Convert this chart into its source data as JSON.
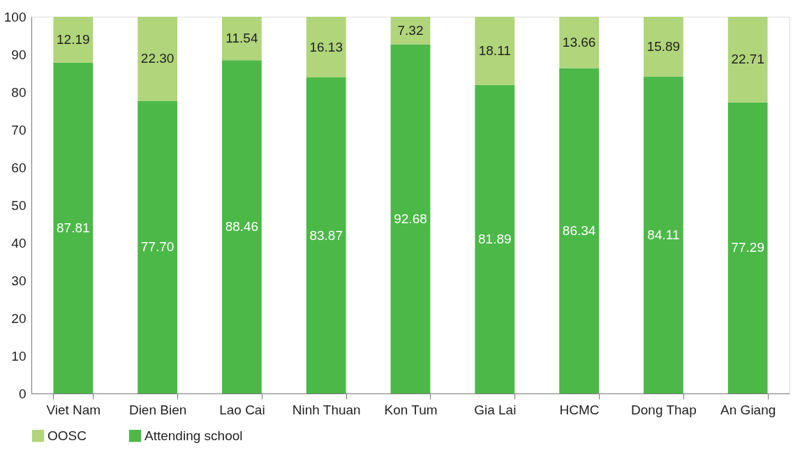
{
  "chart_data": {
    "type": "bar",
    "stacked": true,
    "categories": [
      "Viet Nam",
      "Dien Bien",
      "Lao Cai",
      "Ninh Thuan",
      "Kon Tum",
      "Gia Lai",
      "HCMC",
      "Dong Thap",
      "An Giang"
    ],
    "series": [
      {
        "name": "Attending school",
        "color": "#4cb848",
        "values": [
          87.81,
          77.7,
          88.46,
          83.87,
          92.68,
          81.89,
          86.34,
          84.11,
          77.29
        ],
        "value_labels": [
          "87.81",
          "77.70",
          "88.46",
          "83.87",
          "92.68",
          "81.89",
          "86.34",
          "84.11",
          "77.29"
        ]
      },
      {
        "name": "OOSC",
        "color": "#b0d57a",
        "values": [
          12.19,
          22.3,
          11.54,
          16.13,
          7.32,
          18.11,
          13.66,
          15.89,
          22.71
        ],
        "value_labels": [
          "12.19",
          "22.30",
          "11.54",
          "16.13",
          "7.32",
          "18.11",
          "13.66",
          "15.89",
          "22.71"
        ]
      }
    ],
    "ylim": [
      0,
      100
    ],
    "yticks": [
      0,
      10,
      20,
      30,
      40,
      50,
      60,
      70,
      80,
      90,
      100
    ],
    "grid": false,
    "legend": "bottom left"
  }
}
